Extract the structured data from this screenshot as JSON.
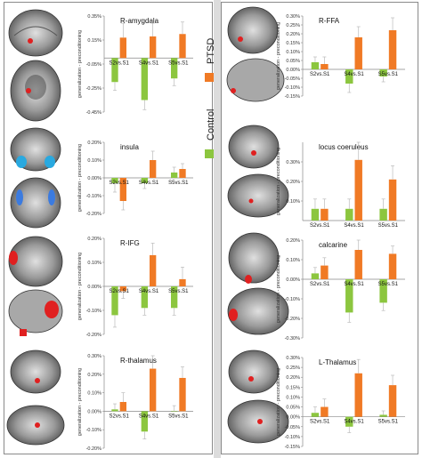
{
  "legend": {
    "ptsd": {
      "label": "PTSD",
      "color": "#f07a25"
    },
    "control": {
      "label": "Control",
      "color": "#8cc63f"
    }
  },
  "axis_label": "generalization - preconditioning",
  "chart_data": [
    {
      "type": "bar",
      "title": "R-amygdala",
      "categories": [
        "S2vs.S1",
        "S4vs.S1",
        "S5vs.S1"
      ],
      "ylim": [
        -0.45,
        0.35
      ],
      "yticks": [
        "0.35%",
        "0.15%",
        "-0.05%",
        "-0.25%",
        "-0.45%"
      ],
      "yticks_values": [
        0.35,
        0.15,
        -0.05,
        -0.25,
        -0.45
      ],
      "series": [
        {
          "name": "Control",
          "values": [
            -0.2,
            -0.35,
            -0.17
          ],
          "errors": [
            0.07,
            0.08,
            0.06
          ]
        },
        {
          "name": "PTSD",
          "values": [
            0.17,
            0.18,
            0.2
          ],
          "errors": [
            0.12,
            0.11,
            0.1
          ]
        }
      ]
    },
    {
      "type": "bar",
      "title": "insula",
      "categories": [
        "S2vs.S1",
        "S4vs.S1",
        "S5vs.S1"
      ],
      "ylim": [
        -0.2,
        0.2
      ],
      "yticks": [
        "0.20%",
        "0.10%",
        "0.00%",
        "-0.10%",
        "-0.20%"
      ],
      "yticks_values": [
        0.2,
        0.1,
        0.0,
        -0.1,
        -0.2
      ],
      "series": [
        {
          "name": "Control",
          "values": [
            -0.03,
            -0.03,
            0.03
          ],
          "errors": [
            0.05,
            0.03,
            0.03
          ]
        },
        {
          "name": "PTSD",
          "values": [
            -0.13,
            0.1,
            0.05
          ],
          "errors": [
            0.05,
            0.05,
            0.03
          ]
        }
      ]
    },
    {
      "type": "bar",
      "title": "R-IFG",
      "categories": [
        "S2vs.S1",
        "S4vs.S1",
        "S5vs.S1"
      ],
      "ylim": [
        -0.2,
        0.2
      ],
      "yticks": [
        "0.20%",
        "0.10%",
        "0.00%",
        "-0.10%",
        "-0.20%"
      ],
      "yticks_values": [
        0.2,
        0.1,
        0.0,
        -0.1,
        -0.2
      ],
      "series": [
        {
          "name": "Control",
          "values": [
            -0.12,
            -0.09,
            -0.09
          ],
          "errors": [
            0.05,
            0.03,
            0.03
          ]
        },
        {
          "name": "PTSD",
          "values": [
            -0.02,
            0.13,
            0.03
          ],
          "errors": [
            0.03,
            0.05,
            0.05
          ]
        }
      ]
    },
    {
      "type": "bar",
      "title": "R-thalamus",
      "categories": [
        "S2vs.S1",
        "S4vs.S1",
        "S5vs.S1"
      ],
      "ylim": [
        -0.2,
        0.3
      ],
      "yticks": [
        "0.30%",
        "0.20%",
        "0.10%",
        "0.00%",
        "-0.10%",
        "-0.20%"
      ],
      "yticks_values": [
        0.3,
        0.2,
        0.1,
        0.0,
        -0.1,
        -0.2
      ],
      "series": [
        {
          "name": "Control",
          "values": [
            0.01,
            -0.11,
            0.0
          ],
          "errors": [
            0.03,
            0.04,
            0.03
          ]
        },
        {
          "name": "PTSD",
          "values": [
            0.05,
            0.23,
            0.18
          ],
          "errors": [
            0.05,
            0.07,
            0.06
          ]
        }
      ]
    },
    {
      "type": "bar",
      "title": "R-FFA",
      "categories": [
        "S2vs.S1",
        "S4vs.S1",
        "S5vs.S1"
      ],
      "ylim": [
        -0.15,
        0.3
      ],
      "yticks": [
        "0.30%",
        "0.25%",
        "0.20%",
        "0.15%",
        "0.10%",
        "0.05%",
        "0.00%",
        "-0.05%",
        "-0.10%",
        "-0.15%"
      ],
      "yticks_values": [
        0.3,
        0.25,
        0.2,
        0.15,
        0.1,
        0.05,
        0.0,
        -0.05,
        -0.1,
        -0.15
      ],
      "series": [
        {
          "name": "Control",
          "values": [
            0.04,
            -0.08,
            -0.04
          ],
          "errors": [
            0.03,
            0.05,
            0.03
          ]
        },
        {
          "name": "PTSD",
          "values": [
            0.03,
            0.18,
            0.22
          ],
          "errors": [
            0.04,
            0.06,
            0.07
          ]
        }
      ]
    },
    {
      "type": "bar",
      "title": "locus coeruleus",
      "categories": [
        "S2vs.S1",
        "S4vs.S1",
        "S5vs.S1"
      ],
      "ylim": [
        0.0,
        0.4
      ],
      "yticks": [
        "0.30%",
        "0.20%",
        "0.10%"
      ],
      "yticks_values": [
        0.3,
        0.2,
        0.1
      ],
      "series": [
        {
          "name": "Control",
          "values": [
            0.06,
            0.06,
            0.06
          ],
          "errors": [
            0.05,
            0.05,
            0.05
          ]
        },
        {
          "name": "PTSD",
          "values": [
            0.06,
            0.31,
            0.21
          ],
          "errors": [
            0.05,
            0.09,
            0.07
          ]
        }
      ]
    },
    {
      "type": "bar",
      "title": "calcarine",
      "categories": [
        "S2vs.S1",
        "S4vs.S1",
        "S5vs.S1"
      ],
      "ylim": [
        -0.3,
        0.2
      ],
      "yticks": [
        "0.20%",
        "0.10%",
        "0.00%",
        "-0.10%",
        "-0.20%",
        "-0.30%"
      ],
      "yticks_values": [
        0.2,
        0.1,
        0.0,
        -0.1,
        -0.2,
        -0.3
      ],
      "series": [
        {
          "name": "Control",
          "values": [
            0.03,
            -0.17,
            -0.12
          ],
          "errors": [
            0.03,
            0.05,
            0.04
          ]
        },
        {
          "name": "PTSD",
          "values": [
            0.07,
            0.15,
            0.13
          ],
          "errors": [
            0.04,
            0.05,
            0.04
          ]
        }
      ]
    },
    {
      "type": "bar",
      "title": "L-Thalamus",
      "categories": [
        "S2vs.S1",
        "S4vs.S1",
        "S5vs.S1"
      ],
      "ylim": [
        -0.15,
        0.3
      ],
      "yticks": [
        "0.30%",
        "0.25%",
        "0.20%",
        "0.15%",
        "0.10%",
        "0.05%",
        "0.00%",
        "-0.05%",
        "-0.10%",
        "-0.15%"
      ],
      "yticks_values": [
        0.3,
        0.25,
        0.2,
        0.15,
        0.1,
        0.05,
        0.0,
        -0.05,
        -0.1,
        -0.15
      ],
      "series": [
        {
          "name": "Control",
          "values": [
            0.02,
            -0.05,
            0.01
          ],
          "errors": [
            0.03,
            0.03,
            0.02
          ]
        },
        {
          "name": "PTSD",
          "values": [
            0.05,
            0.22,
            0.16
          ],
          "errors": [
            0.04,
            0.07,
            0.05
          ]
        }
      ]
    }
  ]
}
